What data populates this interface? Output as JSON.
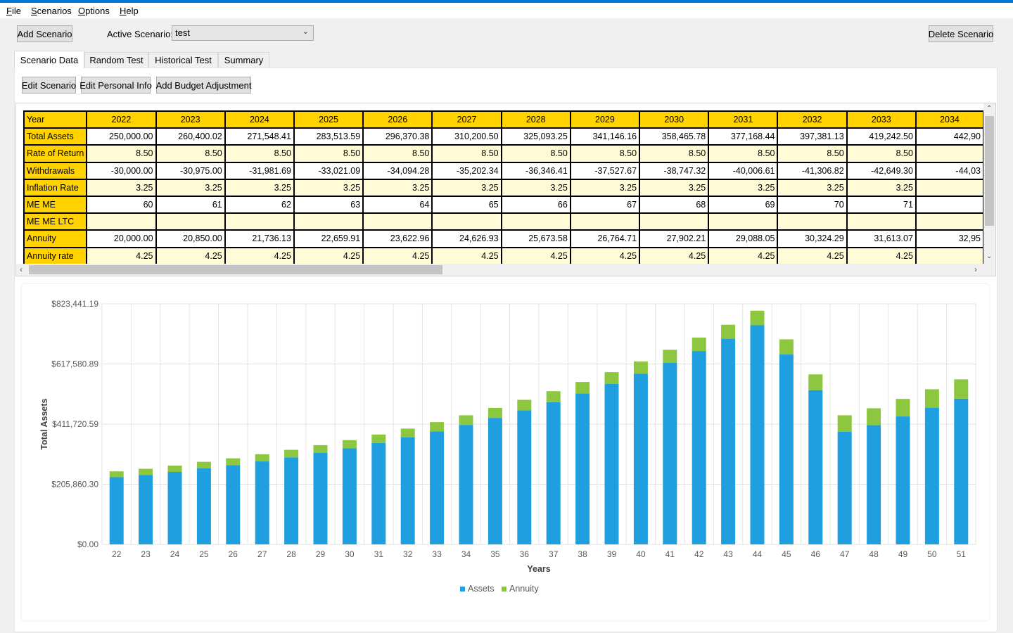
{
  "menu": [
    {
      "accel": "F",
      "rest": "ile"
    },
    {
      "accel": "S",
      "rest": "cenarios"
    },
    {
      "accel": "O",
      "rest": "ptions"
    },
    {
      "accel": "H",
      "rest": "elp"
    }
  ],
  "toolbar": {
    "add_scenario": "Add Scenario",
    "active_label": "Active Scenario:",
    "active_value": "test",
    "delete_scenario": "Delete Scenario"
  },
  "tabs": [
    "Scenario Data",
    "Random Test",
    "Historical Test",
    "Summary"
  ],
  "actions": {
    "edit_scenario": "Edit Scenario",
    "edit_personal": "Edit Personal Info",
    "add_budget": "Add Budget Adjustment"
  },
  "grid": {
    "years_label": "Year",
    "years": [
      "2022",
      "2023",
      "2024",
      "2025",
      "2026",
      "2027",
      "2028",
      "2029",
      "2030",
      "2031",
      "2032",
      "2033",
      "2034"
    ],
    "rows": [
      {
        "label": "Total Assets",
        "style": "white",
        "values": [
          "250,000.00",
          "260,400.02",
          "271,548.41",
          "283,513.59",
          "296,370.38",
          "310,200.50",
          "325,093.25",
          "341,146.16",
          "358,465.78",
          "377,168.44",
          "397,381.13",
          "419,242.50",
          "442,90"
        ]
      },
      {
        "label": "Rate of Return",
        "style": "light",
        "values": [
          "8.50",
          "8.50",
          "8.50",
          "8.50",
          "8.50",
          "8.50",
          "8.50",
          "8.50",
          "8.50",
          "8.50",
          "8.50",
          "8.50",
          ""
        ]
      },
      {
        "label": "Withdrawals",
        "style": "white",
        "values": [
          "-30,000.00",
          "-30,975.00",
          "-31,981.69",
          "-33,021.09",
          "-34,094.28",
          "-35,202.34",
          "-36,346.41",
          "-37,527.67",
          "-38,747.32",
          "-40,006.61",
          "-41,306.82",
          "-42,649.30",
          "-44,03"
        ]
      },
      {
        "label": "Inflation Rate",
        "style": "light",
        "values": [
          "3.25",
          "3.25",
          "3.25",
          "3.25",
          "3.25",
          "3.25",
          "3.25",
          "3.25",
          "3.25",
          "3.25",
          "3.25",
          "3.25",
          ""
        ]
      },
      {
        "label": "ME ME",
        "style": "white",
        "values": [
          "60",
          "61",
          "62",
          "63",
          "64",
          "65",
          "66",
          "67",
          "68",
          "69",
          "70",
          "71",
          ""
        ]
      },
      {
        "label": "ME ME LTC",
        "style": "light",
        "values": [
          "",
          "",
          "",
          "",
          "",
          "",
          "",
          "",
          "",
          "",
          "",
          "",
          ""
        ]
      },
      {
        "label": "Annuity",
        "style": "white",
        "values": [
          "20,000.00",
          "20,850.00",
          "21,736.13",
          "22,659.91",
          "23,622.96",
          "24,626.93",
          "25,673.58",
          "26,764.71",
          "27,902.21",
          "29,088.05",
          "30,324.29",
          "31,613.07",
          "32,95"
        ]
      },
      {
        "label": "Annuity rate",
        "style": "light",
        "values": [
          "4.25",
          "4.25",
          "4.25",
          "4.25",
          "4.25",
          "4.25",
          "4.25",
          "4.25",
          "4.25",
          "4.25",
          "4.25",
          "4.25",
          ""
        ]
      }
    ]
  },
  "chart_data": {
    "type": "bar",
    "stacked": true,
    "xlabel": "Years",
    "ylabel": "Total Assets",
    "ylim": [
      0,
      823441.19
    ],
    "yticks": [
      "$0.00",
      "$205,860.30",
      "$411,720.59",
      "$617,580.89",
      "$823,441.19"
    ],
    "ytick_values": [
      0,
      205860.3,
      411720.59,
      617580.89,
      823441.19
    ],
    "categories": [
      "22",
      "23",
      "24",
      "25",
      "26",
      "27",
      "28",
      "29",
      "30",
      "31",
      "32",
      "33",
      "34",
      "35",
      "36",
      "37",
      "38",
      "39",
      "40",
      "41",
      "42",
      "43",
      "44",
      "45",
      "46",
      "47",
      "48",
      "49",
      "50",
      "51"
    ],
    "series": [
      {
        "name": "Assets",
        "color": "#1f9fdf",
        "values": [
          230000,
          238000,
          248000,
          260000,
          271000,
          284000,
          298000,
          313000,
          329000,
          347000,
          366000,
          387000,
          409000,
          433000,
          459000,
          487000,
          517000,
          549000,
          584000,
          622000,
          662000,
          704000,
          750000,
          650000,
          528000,
          386000,
          408000,
          438000,
          468000,
          499000
        ]
      },
      {
        "name": "Annuity",
        "color": "#8dc63f",
        "values": [
          20000,
          20850,
          21740,
          22660,
          23620,
          24630,
          25670,
          26760,
          27900,
          29090,
          30320,
          31610,
          32960,
          34360,
          35820,
          37350,
          38940,
          40590,
          42320,
          44120,
          46000,
          47950,
          50000,
          52000,
          54000,
          56000,
          58000,
          60000,
          63000,
          66000
        ]
      }
    ],
    "legend_position": "bottom"
  }
}
